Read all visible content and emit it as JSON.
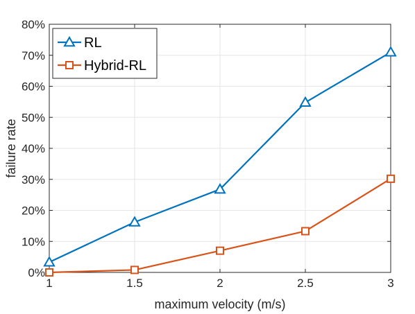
{
  "chart_data": {
    "type": "line",
    "title": "",
    "xlabel": "maximum velocity (m/s)",
    "ylabel": "failure rate",
    "x": [
      1,
      1.5,
      2,
      2.5,
      3
    ],
    "xlim": [
      1,
      3
    ],
    "ylim": [
      0,
      80
    ],
    "xticks": [
      "1",
      "1.5",
      "2",
      "2.5",
      "3"
    ],
    "yticks": [
      "0%",
      "10%",
      "20%",
      "30%",
      "40%",
      "50%",
      "60%",
      "70%",
      "80%"
    ],
    "grid": true,
    "legend_position": "top-left",
    "series": [
      {
        "name": "RL",
        "values": [
          3.3,
          16.2,
          26.8,
          54.8,
          71.0
        ],
        "color": "#0072BD",
        "marker": "triangle"
      },
      {
        "name": "Hybrid-RL",
        "values": [
          0,
          0.8,
          7.0,
          13.3,
          30.2
        ],
        "color": "#D95319",
        "marker": "square"
      }
    ]
  }
}
